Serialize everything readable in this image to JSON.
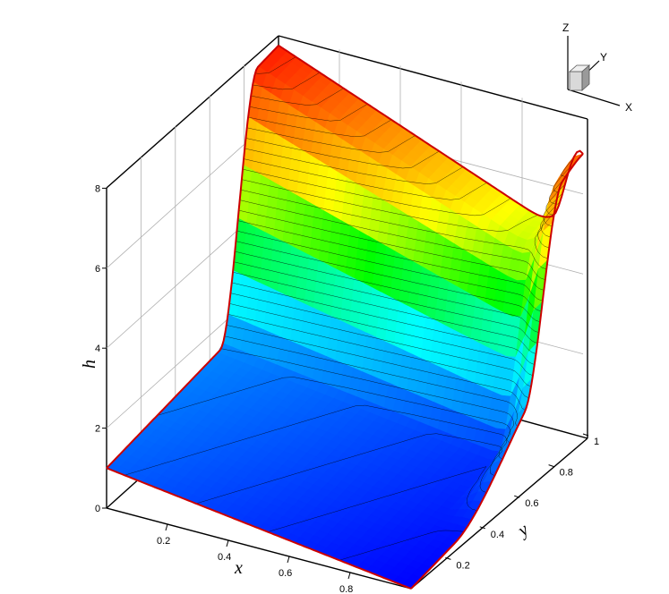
{
  "chart_data": {
    "type": "surface",
    "xlabel": "x",
    "ylabel": "y",
    "zlabel": "h",
    "xlim": [
      0,
      1
    ],
    "ylim": [
      0,
      1
    ],
    "zlim": [
      0,
      8
    ],
    "x_ticks": [
      "0.2",
      "0.4",
      "0.6",
      "0.8"
    ],
    "y_ticks": [
      "0.2",
      "0.4",
      "0.6",
      "0.8",
      "1"
    ],
    "z_ticks": [
      "0",
      "2",
      "4",
      "6",
      "8"
    ],
    "corner_values": {
      "x0_y0": 1.0,
      "x1_y0": 0.0,
      "x0_y1": 5.7,
      "x1_y1": 3.3,
      "peak": 8.2
    },
    "contour_levels": 34,
    "colormap": [
      "#0000ff",
      "#0080ff",
      "#00ffff",
      "#00ff00",
      "#ffff00",
      "#ff8000",
      "#ff0000"
    ],
    "edge_color": "#cc0000",
    "grid": true
  },
  "triad": {
    "z": "Z",
    "y": "Y",
    "x": "X"
  }
}
